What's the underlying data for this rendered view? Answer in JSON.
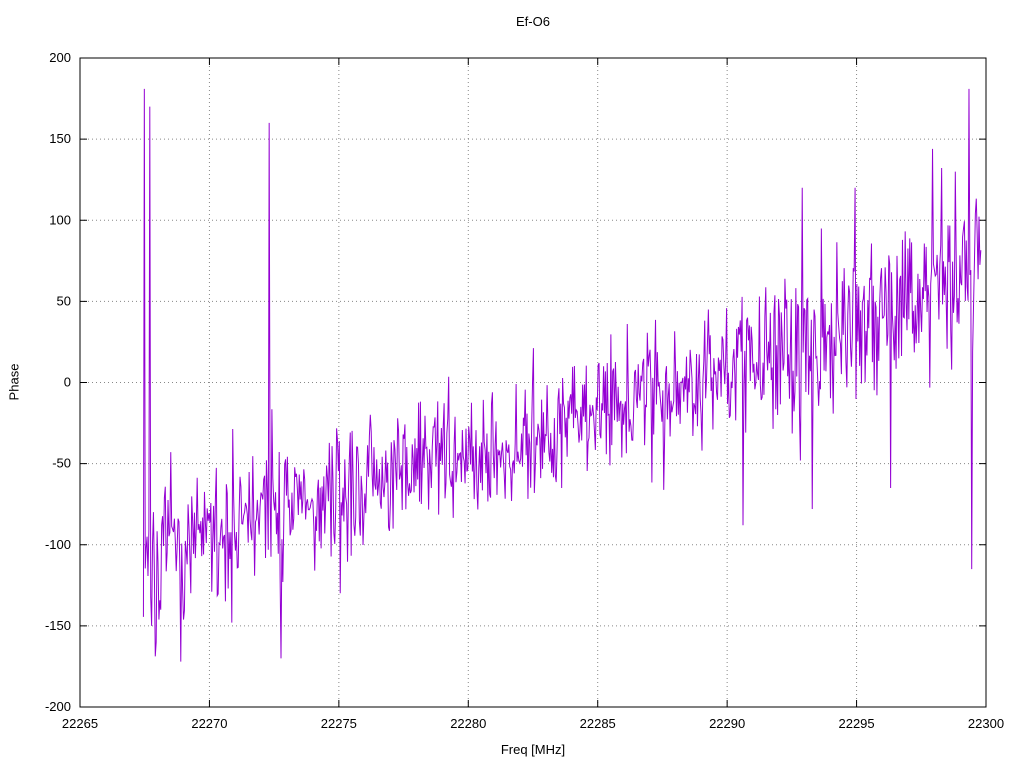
{
  "chart_data": {
    "type": "line",
    "title": "Ef-O6",
    "xlabel": "Freq [MHz]",
    "ylabel": "Phase",
    "xlim": [
      22265,
      22300
    ],
    "ylim": [
      -200,
      200
    ],
    "xticks": [
      22265,
      22270,
      22275,
      22280,
      22285,
      22290,
      22295,
      22300
    ],
    "yticks": [
      -200,
      -150,
      -100,
      -50,
      0,
      50,
      100,
      150,
      200
    ],
    "grid": true,
    "legend": "none",
    "line_color": "#9400d3",
    "series": [
      {
        "name": "phase",
        "x_start": 22267.45,
        "x_end": 22299.8,
        "n_points": 920,
        "seed": 7,
        "excursion_prob": 0.07,
        "excursion_scale": 2.4,
        "trend_anchors": {
          "x": [
            22267.5,
            22268.0,
            22269.0,
            22270.0,
            22272.0,
            22274.0,
            22276.0,
            22278.0,
            22280.0,
            22282.0,
            22284.0,
            22286.0,
            22288.0,
            22290.0,
            22292.0,
            22294.0,
            22296.0,
            22298.0,
            22299.8
          ],
          "y": [
            -100,
            -112,
            -100,
            -95,
            -82,
            -75,
            -62,
            -52,
            -45,
            -35,
            -25,
            -10,
            0,
            10,
            20,
            30,
            42,
            55,
            65
          ]
        },
        "noise_anchors": {
          "x": [
            22267.5,
            22275.0,
            22285.0,
            22292.0,
            22299.8
          ],
          "amp": [
            30,
            27,
            26,
            30,
            38
          ]
        },
        "spikes": [
          {
            "x": 22267.5,
            "y": 181
          },
          {
            "x": 22267.58,
            "y": -95
          },
          {
            "x": 22267.68,
            "y": 170
          },
          {
            "x": 22267.78,
            "y": -150
          },
          {
            "x": 22267.95,
            "y": -160
          },
          {
            "x": 22268.9,
            "y": -172
          },
          {
            "x": 22270.85,
            "y": -148
          },
          {
            "x": 22272.32,
            "y": 160
          },
          {
            "x": 22272.78,
            "y": -170
          },
          {
            "x": 22290.6,
            "y": -88
          },
          {
            "x": 22292.9,
            "y": 120
          },
          {
            "x": 22293.3,
            "y": -78
          },
          {
            "x": 22294.95,
            "y": 120
          },
          {
            "x": 22296.3,
            "y": -65
          },
          {
            "x": 22297.95,
            "y": 144
          },
          {
            "x": 22298.8,
            "y": 130
          },
          {
            "x": 22299.35,
            "y": 181
          },
          {
            "x": 22299.45,
            "y": -115
          },
          {
            "x": 22299.6,
            "y": 104
          }
        ]
      }
    ]
  }
}
